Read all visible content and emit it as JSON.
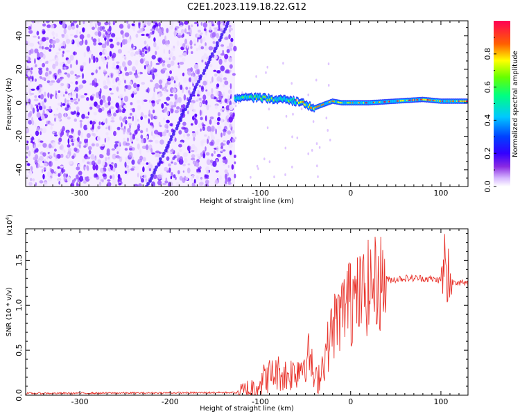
{
  "title": "C2E1.2023.119.18.22.G12",
  "colors": {
    "snr_line": "#e8322a",
    "spectrum_noise": "#8a2be2",
    "spectrum_signal": "#1f33ff",
    "colormap": [
      "#ffffff",
      "#d7b8ff",
      "#8a2be2",
      "#4b00ff",
      "#0000ff",
      "#00bfff",
      "#00ff80",
      "#ffff00",
      "#ff6000",
      "#ff0050"
    ]
  },
  "chart_data": [
    {
      "type": "heatmap",
      "xlabel": "Height of straight line (km)",
      "ylabel": "Frequency (Hz)",
      "xlim": [
        -360,
        130
      ],
      "ylim": [
        -50,
        49
      ],
      "xticks": [
        -300,
        -200,
        -100,
        0,
        100
      ],
      "yticks": [
        -40,
        -20,
        0,
        20,
        40
      ],
      "colorbar": {
        "label": "Normalized spectral amplitude",
        "range": [
          0,
          1
        ],
        "ticks": [
          "0.0",
          "0.2",
          "0.4",
          "0.6",
          "0.8"
        ],
        "tick_values": [
          0.0,
          0.2,
          0.4,
          0.6,
          0.8
        ]
      },
      "noise_region_x": [
        -360,
        -128
      ],
      "tone_track": {
        "x": [
          -128,
          -100,
          -80,
          -60,
          -50,
          -40,
          -30,
          -20,
          -10,
          0,
          20,
          50,
          80,
          100,
          130
        ],
        "freq_hz": [
          3,
          3,
          2,
          1,
          -1,
          -3,
          -1,
          1,
          0,
          0,
          0,
          1,
          2,
          1,
          1
        ]
      },
      "diagonal_streak": {
        "x": [
          -225,
          -135
        ],
        "freq_hz": [
          -50,
          49
        ]
      }
    },
    {
      "type": "line",
      "xlabel": "Height of straight line (km)",
      "ylabel": "SNR (10 * v/v)",
      "multiplier": "(x10",
      "multiplier_exp": "4",
      "multiplier_close": ")",
      "xlim": [
        -360,
        130
      ],
      "ylim": [
        0,
        1.85
      ],
      "xticks": [
        -300,
        -200,
        -100,
        0,
        100
      ],
      "yticks": [
        0.0,
        0.5,
        1.0,
        1.5
      ],
      "ytick_labels": [
        "0.0",
        "0.5",
        "1.0",
        "1.5"
      ],
      "series": [
        {
          "x": [
            -360,
            -120,
            -110,
            -100,
            -90,
            -80,
            -70,
            -60,
            -50,
            -45,
            -40,
            -35,
            -30,
            -25,
            -20,
            -15,
            -10,
            -5,
            0,
            10,
            20,
            30,
            40,
            60,
            80,
            100,
            105,
            108,
            110,
            115,
            130
          ],
          "y": [
            0.02,
            0.03,
            0.07,
            0.15,
            0.22,
            0.25,
            0.22,
            0.28,
            0.4,
            0.45,
            0.12,
            0.22,
            0.38,
            0.55,
            0.75,
            0.85,
            0.9,
            1.05,
            1.0,
            1.1,
            1.2,
            1.25,
            1.28,
            1.3,
            1.3,
            1.28,
            1.35,
            1.05,
            1.25,
            1.27,
            1.23
          ]
        }
      ]
    }
  ]
}
